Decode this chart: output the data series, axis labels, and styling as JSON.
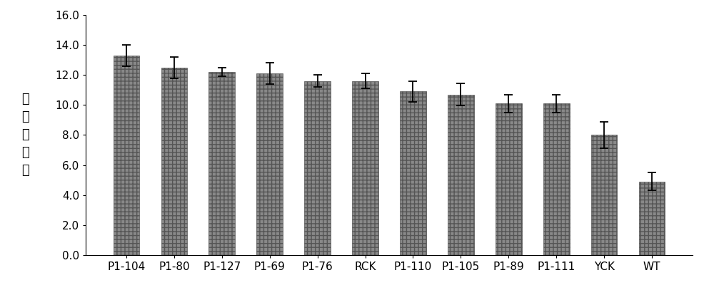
{
  "categories": [
    "P1-104",
    "P1-80",
    "P1-127",
    "P1-69",
    "P1-76",
    "RCK",
    "P1-110",
    "P1-105",
    "P1-89",
    "P1-111",
    "YCK",
    "WT"
  ],
  "values": [
    13.3,
    12.5,
    12.2,
    12.1,
    11.6,
    11.6,
    10.9,
    10.7,
    10.1,
    10.1,
    8.0,
    4.9
  ],
  "errors": [
    0.7,
    0.72,
    0.3,
    0.7,
    0.4,
    0.5,
    0.7,
    0.72,
    0.6,
    0.6,
    0.9,
    0.6
  ],
  "bar_color": "#898989",
  "bar_edgecolor": "#555555",
  "ylabel": "单\n株\n成\n铃\n数",
  "ylim": [
    0,
    16.0
  ],
  "yticks": [
    0.0,
    2.0,
    4.0,
    6.0,
    8.0,
    10.0,
    12.0,
    14.0,
    16.0
  ],
  "background_color": "#ffffff",
  "bar_width": 0.55,
  "figsize": [
    10.0,
    4.21
  ],
  "dpi": 100,
  "tick_fontsize": 11,
  "ylabel_fontsize": 13
}
